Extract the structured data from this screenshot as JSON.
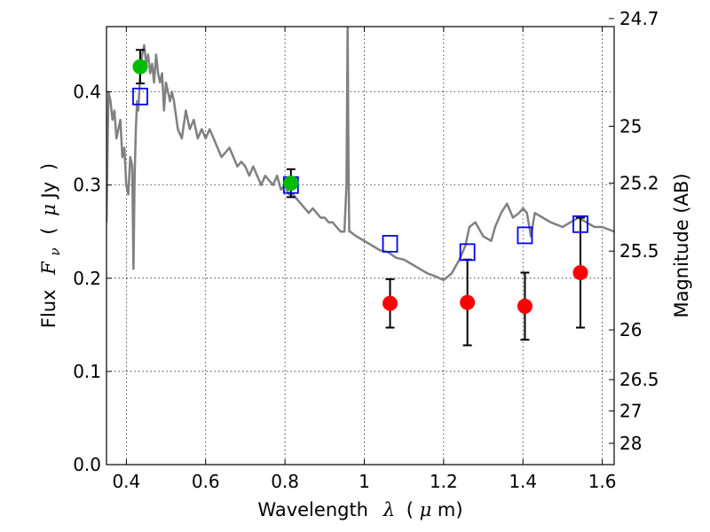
{
  "chart_data": {
    "type": "scatter",
    "title": "",
    "xlabel": {
      "text": "Wavelength",
      "symbol": "λ",
      "unit_open": "(",
      "unit_mu": "μ",
      "unit_rest": "m)"
    },
    "ylabel": {
      "text": "Flux",
      "symbol": "F",
      "subscript": "ν",
      "unit_open": "(",
      "unit_mu": "μ",
      "unit_rest": "Jy",
      "unit_close": ")"
    },
    "ylabel_right": "Magnitude (AB)",
    "xlim": [
      0.35,
      1.63
    ],
    "ylim": [
      0.0,
      0.47
    ],
    "grid": true,
    "grid_style": "dotted",
    "xticks": [
      {
        "value": 0.4,
        "label": "0.4"
      },
      {
        "value": 0.6,
        "label": "0.6"
      },
      {
        "value": 0.8,
        "label": "0.8"
      },
      {
        "value": 1.0,
        "label": "1"
      },
      {
        "value": 1.2,
        "label": "1.2"
      },
      {
        "value": 1.4,
        "label": "1.4"
      },
      {
        "value": 1.6,
        "label": "1.6"
      }
    ],
    "yticks": [
      {
        "value": 0.0,
        "label": "0.0"
      },
      {
        "value": 0.1,
        "label": "0.1"
      },
      {
        "value": 0.2,
        "label": "0.2"
      },
      {
        "value": 0.3,
        "label": "0.3"
      },
      {
        "value": 0.4,
        "label": "0.4"
      }
    ],
    "right_ticks": [
      {
        "mag": 24.7,
        "label": "24.7"
      },
      {
        "mag": 25.0,
        "label": "25"
      },
      {
        "mag": 25.2,
        "label": "25.2"
      },
      {
        "mag": 25.5,
        "label": "25.5"
      },
      {
        "mag": 26.0,
        "label": "26"
      },
      {
        "mag": 26.5,
        "label": "26.5"
      },
      {
        "mag": 27.0,
        "label": "27"
      },
      {
        "mag": 28.0,
        "label": "28"
      }
    ],
    "series": [
      {
        "kind": "spectrum",
        "color": "#808080",
        "x": [
          0.35,
          0.355,
          0.36,
          0.365,
          0.37,
          0.375,
          0.38,
          0.385,
          0.39,
          0.395,
          0.4,
          0.405,
          0.41,
          0.415,
          0.418,
          0.421,
          0.424,
          0.427,
          0.43,
          0.435,
          0.44,
          0.445,
          0.45,
          0.455,
          0.46,
          0.465,
          0.47,
          0.475,
          0.48,
          0.485,
          0.49,
          0.495,
          0.5,
          0.505,
          0.51,
          0.515,
          0.52,
          0.53,
          0.54,
          0.55,
          0.56,
          0.57,
          0.58,
          0.59,
          0.6,
          0.61,
          0.62,
          0.63,
          0.64,
          0.65,
          0.66,
          0.67,
          0.68,
          0.69,
          0.7,
          0.71,
          0.72,
          0.73,
          0.74,
          0.75,
          0.76,
          0.77,
          0.78,
          0.79,
          0.8,
          0.81,
          0.82,
          0.83,
          0.84,
          0.85,
          0.86,
          0.87,
          0.88,
          0.89,
          0.9,
          0.91,
          0.92,
          0.93,
          0.94,
          0.95,
          0.955,
          0.958,
          0.96,
          0.962,
          0.965,
          0.97,
          0.98,
          1.0,
          1.02,
          1.04,
          1.06,
          1.08,
          1.1,
          1.12,
          1.14,
          1.16,
          1.18,
          1.2,
          1.22,
          1.24,
          1.255,
          1.265,
          1.28,
          1.3,
          1.32,
          1.33,
          1.345,
          1.36,
          1.375,
          1.39,
          1.4,
          1.41,
          1.42,
          1.43,
          1.45,
          1.47,
          1.5,
          1.52,
          1.54,
          1.56,
          1.58,
          1.6,
          1.63
        ],
        "y": [
          0.26,
          0.4,
          0.39,
          0.37,
          0.38,
          0.35,
          0.36,
          0.37,
          0.33,
          0.34,
          0.3,
          0.29,
          0.33,
          0.32,
          0.21,
          0.31,
          0.36,
          0.39,
          0.38,
          0.42,
          0.44,
          0.45,
          0.43,
          0.44,
          0.42,
          0.43,
          0.41,
          0.44,
          0.42,
          0.41,
          0.42,
          0.38,
          0.41,
          0.4,
          0.39,
          0.4,
          0.39,
          0.36,
          0.35,
          0.38,
          0.36,
          0.37,
          0.35,
          0.36,
          0.35,
          0.36,
          0.35,
          0.34,
          0.33,
          0.335,
          0.34,
          0.33,
          0.32,
          0.325,
          0.32,
          0.31,
          0.32,
          0.31,
          0.3,
          0.31,
          0.305,
          0.3,
          0.31,
          0.295,
          0.3,
          0.29,
          0.29,
          0.285,
          0.28,
          0.275,
          0.27,
          0.275,
          0.27,
          0.265,
          0.265,
          0.26,
          0.26,
          0.255,
          0.25,
          0.25,
          0.3,
          0.47,
          0.33,
          0.25,
          0.25,
          0.248,
          0.245,
          0.24,
          0.235,
          0.23,
          0.228,
          0.222,
          0.22,
          0.215,
          0.21,
          0.205,
          0.202,
          0.198,
          0.205,
          0.22,
          0.235,
          0.255,
          0.26,
          0.245,
          0.24,
          0.255,
          0.27,
          0.28,
          0.265,
          0.27,
          0.275,
          0.27,
          0.245,
          0.27,
          0.265,
          0.26,
          0.255,
          0.26,
          0.265,
          0.26,
          0.255,
          0.255,
          0.25
        ]
      },
      {
        "kind": "model-points",
        "marker": "open-square",
        "color": "#0000ff",
        "x": [
          0.435,
          0.815,
          1.065,
          1.26,
          1.405,
          1.545
        ],
        "y": [
          0.395,
          0.3,
          0.237,
          0.228,
          0.246,
          0.258
        ]
      },
      {
        "kind": "observed-points",
        "marker": "filled-circle",
        "color": "#00bb00",
        "x": [
          0.435,
          0.815
        ],
        "y": [
          0.427,
          0.302
        ],
        "yerr": [
          0.018,
          0.015
        ]
      },
      {
        "kind": "observed-points",
        "marker": "filled-circle",
        "color": "#ff0000",
        "x": [
          1.065,
          1.26,
          1.405,
          1.545
        ],
        "y": [
          0.173,
          0.174,
          0.17,
          0.206
        ],
        "yerr": [
          0.026,
          0.046,
          0.036,
          0.059
        ]
      }
    ]
  }
}
